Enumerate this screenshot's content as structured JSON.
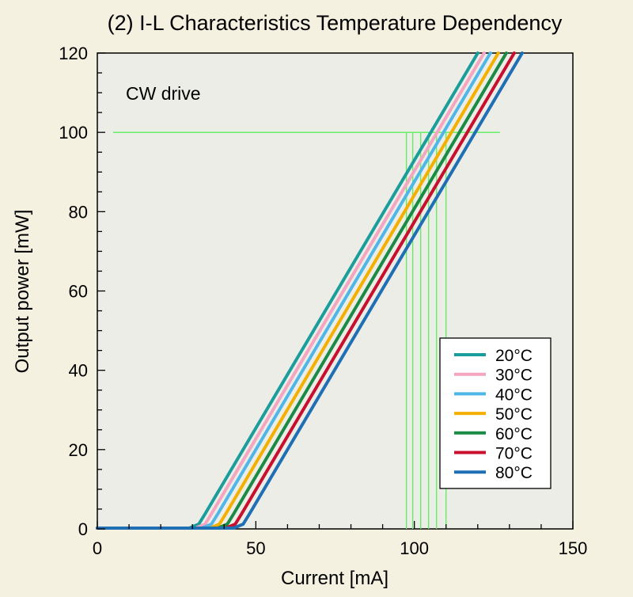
{
  "chart_data": {
    "type": "line",
    "title": "(2) I-L Characteristics Temperature Dependency",
    "annotation": "CW drive",
    "xlabel": "Current [mA]",
    "ylabel": "Output power [mW]",
    "xlim": [
      0,
      150
    ],
    "ylim": [
      0,
      120
    ],
    "xticks": [
      0,
      50,
      100,
      150
    ],
    "yticks": [
      0,
      20,
      40,
      60,
      80,
      100,
      120
    ],
    "grid": false,
    "legend_position": "bottom-right",
    "colors": {
      "page_background": "#f4f1e1",
      "plot_background": "#edede8",
      "reference_lines": "#5af05a"
    },
    "series": [
      {
        "name": "20°C",
        "color": "#1b9e9b",
        "threshold": 32.0,
        "x": [
          0,
          29.0,
          32.0,
          34.0,
          120.0
        ],
        "y": [
          0.2,
          0.2,
          1.2,
          3.8,
          120
        ]
      },
      {
        "name": "30°C",
        "color": "#f4a6c0",
        "threshold": 34.0,
        "x": [
          0,
          31.0,
          34.0,
          36.0,
          122.0
        ],
        "y": [
          0.2,
          0.2,
          1.2,
          3.8,
          120
        ]
      },
      {
        "name": "40°C",
        "color": "#4fb7e8",
        "threshold": 36.0,
        "x": [
          0,
          33.0,
          36.0,
          38.0,
          124.0
        ],
        "y": [
          0.2,
          0.2,
          1.2,
          3.8,
          120
        ]
      },
      {
        "name": "50°C",
        "color": "#f4b000",
        "threshold": 38.5,
        "x": [
          0,
          35.5,
          38.5,
          40.5,
          126.5
        ],
        "y": [
          0.2,
          0.2,
          1.2,
          3.8,
          120
        ]
      },
      {
        "name": "60°C",
        "color": "#1a8a44",
        "threshold": 41.0,
        "x": [
          0,
          38.0,
          41.0,
          43.0,
          129.0
        ],
        "y": [
          0.2,
          0.2,
          1.2,
          3.8,
          120
        ]
      },
      {
        "name": "70°C",
        "color": "#c8102e",
        "threshold": 43.5,
        "x": [
          0,
          40.5,
          43.5,
          45.5,
          131.5
        ],
        "y": [
          0.2,
          0.2,
          1.2,
          3.8,
          120
        ]
      },
      {
        "name": "80°C",
        "color": "#1f6fb5",
        "threshold": 46.0,
        "x": [
          0,
          43.0,
          46.0,
          48.0,
          134.0
        ],
        "y": [
          0.2,
          0.2,
          1.2,
          3.8,
          120
        ]
      }
    ],
    "reference_lines": {
      "horizontal": {
        "y": 100,
        "x_range": [
          5,
          127
        ]
      },
      "vertical_x": [
        97.5,
        99.5,
        102,
        104.5,
        107,
        110
      ]
    }
  }
}
